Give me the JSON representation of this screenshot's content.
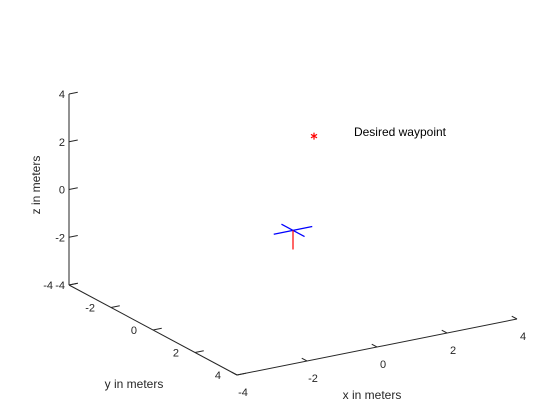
{
  "chart_data": {
    "type": "scatter",
    "projection": "3d",
    "title": "",
    "xlabel": "x in meters",
    "ylabel": "y in meters",
    "zlabel": "z in meters",
    "xlim": [
      -4,
      4
    ],
    "ylim": [
      -4,
      4
    ],
    "zlim": [
      -4,
      4
    ],
    "xticks": [
      -4,
      -2,
      0,
      2,
      4
    ],
    "yticks": [
      -4,
      -2,
      0,
      2,
      4
    ],
    "zticks": [
      -4,
      -2,
      0,
      2,
      4
    ],
    "xtick_labels": [
      "-4",
      "-2",
      "0",
      "2",
      "4"
    ],
    "ytick_labels": [
      "-4",
      "-2",
      "0",
      "2",
      "4"
    ],
    "ztick_labels": [
      "-4",
      "-2",
      "0",
      "2",
      "4"
    ],
    "grid": false,
    "waypoint": {
      "x": 1.5,
      "y": -1.5,
      "z": 1.8,
      "marker": "*",
      "color": "#ff0000"
    },
    "annotation": "Desired waypoint",
    "quadrotor": {
      "position": [
        0,
        0,
        -1
      ],
      "arm_x_color": "#0000ff",
      "arm_y_color": "#0000ff",
      "thrust_color": "#ff0000"
    }
  }
}
